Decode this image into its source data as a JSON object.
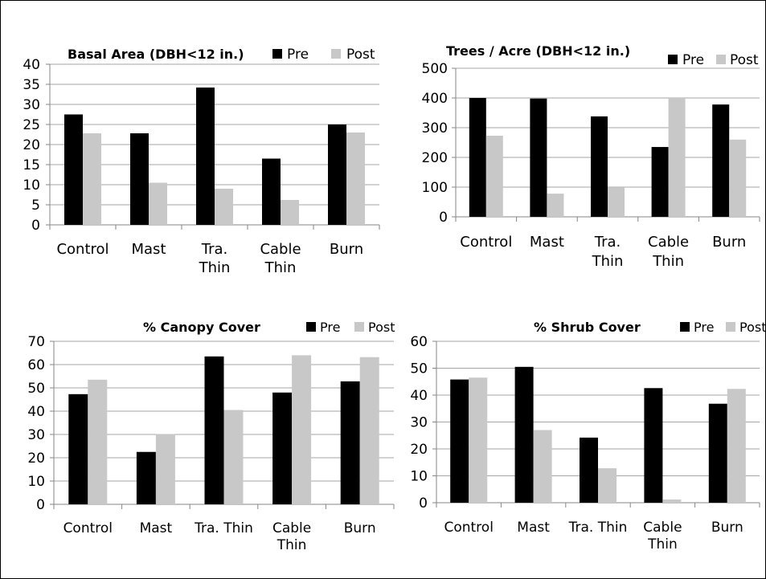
{
  "chart_data": [
    {
      "type": "bar",
      "title": "Basal Area (DBH<12 in.)",
      "categories": [
        "Control",
        "Mast",
        "Tra. Thin",
        "Cable Thin",
        "Burn"
      ],
      "series": [
        {
          "name": "Pre",
          "color": "#000000",
          "values": [
            27.5,
            22.8,
            34.2,
            16.5,
            25.0
          ]
        },
        {
          "name": "Post",
          "color": "#c8c8c8",
          "values": [
            22.8,
            10.5,
            9.0,
            6.2,
            23.0
          ]
        }
      ],
      "ylim": [
        0,
        40
      ],
      "yticks": [
        0,
        5,
        10,
        15,
        20,
        25,
        30,
        35,
        40
      ],
      "grid": true,
      "legend": "top-right"
    },
    {
      "type": "bar",
      "title": "Trees / Acre (DBH<12 in.)",
      "categories": [
        "Control",
        "Mast",
        "Tra. Thin",
        "Cable Thin",
        "Burn"
      ],
      "series": [
        {
          "name": "Pre",
          "color": "#000000",
          "values": [
            400,
            398,
            338,
            235,
            378
          ]
        },
        {
          "name": "Post",
          "color": "#c8c8c8",
          "values": [
            273,
            78,
            98,
            400,
            260
          ]
        }
      ],
      "ylim": [
        0,
        500
      ],
      "yticks": [
        0,
        100,
        200,
        300,
        400,
        500
      ],
      "grid": true,
      "legend": "top-right"
    },
    {
      "type": "bar",
      "title": "% Canopy Cover",
      "categories": [
        "Control",
        "Mast",
        "Tra. Thin",
        "Cable Thin",
        "Burn"
      ],
      "series": [
        {
          "name": "Pre",
          "color": "#000000",
          "values": [
            47.3,
            22.5,
            63.5,
            48.0,
            52.8
          ]
        },
        {
          "name": "Post",
          "color": "#c8c8c8",
          "values": [
            53.5,
            30.2,
            40.5,
            64.0,
            63.2
          ]
        }
      ],
      "ylim": [
        0,
        70
      ],
      "yticks": [
        0,
        10,
        20,
        30,
        40,
        50,
        60,
        70
      ],
      "grid": true,
      "legend": "top-right"
    },
    {
      "type": "bar",
      "title": "% Shrub Cover",
      "categories": [
        "Control",
        "Mast",
        "Tra. Thin",
        "Cable Thin",
        "Burn"
      ],
      "series": [
        {
          "name": "Pre",
          "color": "#000000",
          "values": [
            45.8,
            50.5,
            24.2,
            42.6,
            36.8
          ]
        },
        {
          "name": "Post",
          "color": "#c8c8c8",
          "values": [
            46.5,
            27.0,
            12.8,
            1.2,
            42.3
          ]
        }
      ],
      "ylim": [
        0,
        60
      ],
      "yticks": [
        0,
        10,
        20,
        30,
        40,
        50,
        60
      ],
      "grid": true,
      "legend": "top-right"
    }
  ]
}
